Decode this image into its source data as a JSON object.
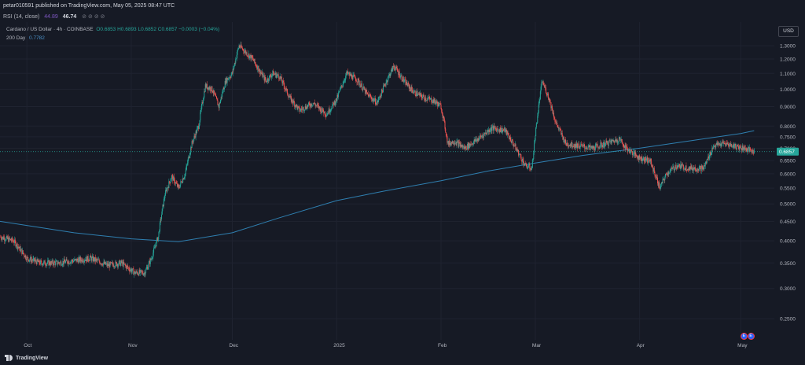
{
  "header": {
    "published": "petar010591 published on TradingView.com, May 05, 2025 08:47 UTC",
    "rsi_label": "RSI (14, close)",
    "rsi_value_1": "44.89",
    "rsi_value_2": "46.74",
    "rsi_icons": "⊘ ⊘ ⊘ ⊘"
  },
  "legend": {
    "symbol": "Cardano / US Dollar · 4h · COINBASE",
    "ohlc": "O0.6853 H0.6893 L0.6852 C0.6857 −0.0003 (−0.04%)",
    "ma_label": "200 Day",
    "ma_value": "0.7782"
  },
  "currency": "USD",
  "footer": {
    "brand": "TradingView"
  },
  "colors": {
    "background": "#161a25",
    "up": "#26a69a",
    "down": "#ef5350",
    "ma": "#2f7fb0",
    "last_price_label": "#26a69a"
  },
  "chart_data": {
    "type": "line",
    "symbol": "ADA/USD",
    "interval": "4h",
    "y_axis": {
      "scale": "log",
      "position": "right",
      "range": [
        0.22,
        1.5
      ],
      "ticks": [
        "1.3000",
        "1.2000",
        "1.1000",
        "1.0000",
        "0.9000",
        "0.8000",
        "0.7500",
        "0.7000",
        "0.6500",
        "0.6000",
        "0.5500",
        "0.5000",
        "0.4500",
        "0.4000",
        "0.3500",
        "0.3000",
        "0.2500"
      ]
    },
    "x_axis": {
      "range": [
        "2024-09-23",
        "2025-05-11"
      ],
      "ticks": [
        {
          "label": "Oct",
          "date": "2024-10-01"
        },
        {
          "label": "Nov",
          "date": "2024-11-01"
        },
        {
          "label": "Dec",
          "date": "2024-12-01"
        },
        {
          "label": "2025",
          "date": "2025-01-01"
        },
        {
          "label": "Feb",
          "date": "2025-02-01"
        },
        {
          "label": "Mar",
          "date": "2025-03-01"
        },
        {
          "label": "Apr",
          "date": "2025-04-01"
        },
        {
          "label": "May",
          "date": "2025-05-01"
        }
      ]
    },
    "last_price": "0.6857",
    "series": [
      {
        "role": "price",
        "points": [
          [
            "2024-09-23",
            0.41
          ],
          [
            "2024-09-27",
            0.4
          ],
          [
            "2024-10-01",
            0.36
          ],
          [
            "2024-10-05",
            0.35
          ],
          [
            "2024-10-10",
            0.35
          ],
          [
            "2024-10-15",
            0.355
          ],
          [
            "2024-10-20",
            0.36
          ],
          [
            "2024-10-25",
            0.345
          ],
          [
            "2024-10-29",
            0.35
          ],
          [
            "2024-11-02",
            0.33
          ],
          [
            "2024-11-05",
            0.33
          ],
          [
            "2024-11-07",
            0.36
          ],
          [
            "2024-11-09",
            0.41
          ],
          [
            "2024-11-11",
            0.53
          ],
          [
            "2024-11-13",
            0.59
          ],
          [
            "2024-11-15",
            0.55
          ],
          [
            "2024-11-17",
            0.6
          ],
          [
            "2024-11-19",
            0.72
          ],
          [
            "2024-11-21",
            0.8
          ],
          [
            "2024-11-23",
            1.02
          ],
          [
            "2024-11-25",
            1.0
          ],
          [
            "2024-11-27",
            0.9
          ],
          [
            "2024-11-29",
            1.05
          ],
          [
            "2024-12-01",
            1.1
          ],
          [
            "2024-12-03",
            1.3
          ],
          [
            "2024-12-05",
            1.25
          ],
          [
            "2024-12-07",
            1.2
          ],
          [
            "2024-12-09",
            1.12
          ],
          [
            "2024-12-11",
            1.05
          ],
          [
            "2024-12-13",
            1.1
          ],
          [
            "2024-12-15",
            1.08
          ],
          [
            "2024-12-18",
            0.95
          ],
          [
            "2024-12-21",
            0.88
          ],
          [
            "2024-12-25",
            0.92
          ],
          [
            "2024-12-29",
            0.86
          ],
          [
            "2025-01-01",
            0.94
          ],
          [
            "2025-01-04",
            1.1
          ],
          [
            "2025-01-07",
            1.06
          ],
          [
            "2025-01-10",
            0.97
          ],
          [
            "2025-01-13",
            0.92
          ],
          [
            "2025-01-16",
            1.06
          ],
          [
            "2025-01-18",
            1.15
          ],
          [
            "2025-01-21",
            1.05
          ],
          [
            "2025-01-24",
            0.98
          ],
          [
            "2025-01-27",
            0.95
          ],
          [
            "2025-01-30",
            0.93
          ],
          [
            "2025-02-01",
            0.9
          ],
          [
            "2025-02-03",
            0.72
          ],
          [
            "2025-02-05",
            0.73
          ],
          [
            "2025-02-08",
            0.7
          ],
          [
            "2025-02-12",
            0.74
          ],
          [
            "2025-02-16",
            0.79
          ],
          [
            "2025-02-20",
            0.78
          ],
          [
            "2025-02-24",
            0.68
          ],
          [
            "2025-02-26",
            0.63
          ],
          [
            "2025-02-28",
            0.62
          ],
          [
            "2025-03-02",
            0.9
          ],
          [
            "2025-03-03",
            1.05
          ],
          [
            "2025-03-05",
            0.95
          ],
          [
            "2025-03-07",
            0.82
          ],
          [
            "2025-03-10",
            0.72
          ],
          [
            "2025-03-14",
            0.71
          ],
          [
            "2025-03-18",
            0.7
          ],
          [
            "2025-03-22",
            0.72
          ],
          [
            "2025-03-26",
            0.74
          ],
          [
            "2025-03-28",
            0.7
          ],
          [
            "2025-04-01",
            0.66
          ],
          [
            "2025-04-04",
            0.65
          ],
          [
            "2025-04-07",
            0.55
          ],
          [
            "2025-04-09",
            0.6
          ],
          [
            "2025-04-12",
            0.63
          ],
          [
            "2025-04-16",
            0.62
          ],
          [
            "2025-04-20",
            0.62
          ],
          [
            "2025-04-23",
            0.71
          ],
          [
            "2025-04-26",
            0.72
          ],
          [
            "2025-04-29",
            0.71
          ],
          [
            "2025-05-02",
            0.7
          ],
          [
            "2025-05-05",
            0.6857
          ]
        ]
      },
      {
        "role": "ma",
        "name": "200 Day",
        "points": [
          [
            "2024-09-23",
            0.45
          ],
          [
            "2024-10-15",
            0.42
          ],
          [
            "2024-11-01",
            0.405
          ],
          [
            "2024-11-15",
            0.398
          ],
          [
            "2024-12-01",
            0.42
          ],
          [
            "2024-12-15",
            0.46
          ],
          [
            "2025-01-01",
            0.51
          ],
          [
            "2025-01-15",
            0.54
          ],
          [
            "2025-02-01",
            0.575
          ],
          [
            "2025-02-15",
            0.61
          ],
          [
            "2025-03-01",
            0.64
          ],
          [
            "2025-03-15",
            0.67
          ],
          [
            "2025-04-01",
            0.7
          ],
          [
            "2025-04-15",
            0.73
          ],
          [
            "2025-05-01",
            0.765
          ],
          [
            "2025-05-05",
            0.7782
          ]
        ]
      }
    ],
    "events": [
      {
        "date": "2025-05-02",
        "label": "E"
      },
      {
        "date": "2025-05-04",
        "label": "E"
      }
    ]
  }
}
